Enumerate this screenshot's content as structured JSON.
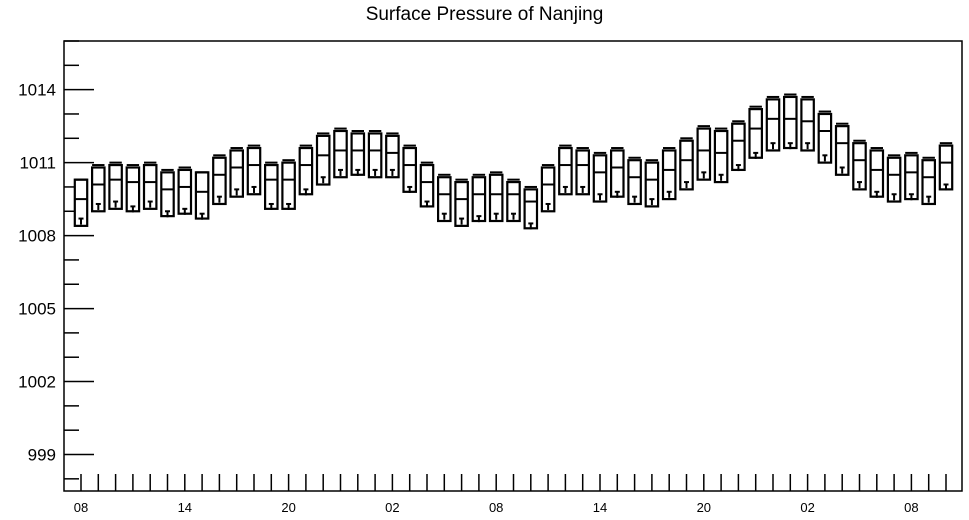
{
  "chart_data": {
    "type": "boxplot",
    "title": "Surface Pressure of Nanjing",
    "xlabel": "",
    "ylabel": "",
    "ylim": [
      997.5,
      1016
    ],
    "yticks": [
      999,
      1002,
      1005,
      1008,
      1011,
      1014
    ],
    "ytick_labels": [
      "999",
      "1002",
      "1005",
      "1008",
      "1011",
      "1014"
    ],
    "x_interval_hours": 2,
    "xtick_labels": [
      "08",
      "14",
      "20",
      "02",
      "08",
      "14",
      "20",
      "02",
      "08"
    ],
    "xtick_label_positions": [
      0,
      3,
      6,
      9,
      12,
      15,
      18,
      21,
      24
    ],
    "grid": false,
    "series": [
      {
        "q1": [
          1008.4,
          1009.0,
          1009.1,
          1009.0,
          1009.1,
          1008.8,
          1008.9,
          1008.7,
          1009.3,
          1009.6,
          1009.7,
          1009.1,
          1009.1,
          1009.7,
          1010.1,
          1010.4,
          1010.5,
          1010.4,
          1010.4,
          1009.8,
          1009.2,
          1008.6,
          1008.4,
          1008.6,
          1008.6,
          1008.6,
          1008.3,
          1009.0,
          1009.7,
          1009.7,
          1009.4,
          1009.6,
          1009.3,
          1009.2,
          1009.5,
          1009.9,
          1010.3,
          1010.2,
          1010.7,
          1011.2,
          1011.5,
          1011.6,
          1011.5,
          1011.0,
          1010.5,
          1009.9,
          1009.6,
          1009.4,
          1009.5,
          1009.3,
          1009.9
        ],
        "median": [
          1009.5,
          1010.1,
          1010.3,
          1010.2,
          1010.2,
          1009.9,
          1010.0,
          1009.8,
          1010.5,
          1010.8,
          1010.9,
          1010.3,
          1010.3,
          1010.9,
          1011.3,
          1011.5,
          1011.5,
          1011.5,
          1011.4,
          1010.9,
          1010.2,
          1009.7,
          1009.5,
          1009.7,
          1009.7,
          1009.7,
          1009.4,
          1010.1,
          1010.9,
          1010.9,
          1010.6,
          1010.8,
          1010.4,
          1010.3,
          1010.7,
          1011.1,
          1011.5,
          1011.4,
          1011.9,
          1012.4,
          1012.8,
          1012.8,
          1012.7,
          1012.3,
          1011.8,
          1011.1,
          1010.7,
          1010.5,
          1010.6,
          1010.4,
          1011.0
        ],
        "q3": [
          1010.3,
          1010.8,
          1010.9,
          1010.8,
          1010.9,
          1010.6,
          1010.7,
          1010.6,
          1011.2,
          1011.5,
          1011.6,
          1010.9,
          1011.0,
          1011.6,
          1012.1,
          1012.3,
          1012.2,
          1012.2,
          1012.1,
          1011.6,
          1010.9,
          1010.4,
          1010.2,
          1010.4,
          1010.5,
          1010.2,
          1009.9,
          1010.8,
          1011.6,
          1011.5,
          1011.3,
          1011.5,
          1011.1,
          1011.0,
          1011.5,
          1011.9,
          1012.4,
          1012.3,
          1012.6,
          1013.2,
          1013.6,
          1013.7,
          1013.6,
          1013.0,
          1012.5,
          1011.8,
          1011.5,
          1011.2,
          1011.3,
          1011.1,
          1011.7
        ],
        "whisker_high": [
          1010.3,
          1010.9,
          1011.0,
          1010.9,
          1011.0,
          1010.7,
          1010.8,
          1010.6,
          1011.3,
          1011.6,
          1011.7,
          1011.0,
          1011.1,
          1011.7,
          1012.2,
          1012.4,
          1012.3,
          1012.3,
          1012.2,
          1011.7,
          1011.0,
          1010.5,
          1010.3,
          1010.5,
          1010.6,
          1010.3,
          1010.0,
          1010.9,
          1011.7,
          1011.6,
          1011.4,
          1011.6,
          1011.2,
          1011.1,
          1011.6,
          1012.0,
          1012.5,
          1012.4,
          1012.7,
          1013.3,
          1013.7,
          1013.8,
          1013.7,
          1013.1,
          1012.6,
          1011.9,
          1011.6,
          1011.3,
          1011.4,
          1011.2,
          1011.8
        ],
        "whisker_low": [
          1008.7,
          1009.3,
          1009.4,
          1009.2,
          1009.4,
          1009.0,
          1009.1,
          1008.9,
          1009.6,
          1009.9,
          1010.0,
          1009.3,
          1009.3,
          1009.9,
          1010.4,
          1010.7,
          1010.7,
          1010.7,
          1010.7,
          1010.0,
          1009.4,
          1008.9,
          1008.7,
          1008.8,
          1008.9,
          1008.9,
          1008.5,
          1009.3,
          1010.0,
          1010.0,
          1009.7,
          1009.8,
          1009.6,
          1009.5,
          1009.8,
          1010.2,
          1010.6,
          1010.5,
          1010.9,
          1011.4,
          1011.8,
          1011.8,
          1011.8,
          1011.3,
          1010.8,
          1010.2,
          1009.8,
          1009.7,
          1009.7,
          1009.6,
          1010.1
        ]
      }
    ]
  }
}
